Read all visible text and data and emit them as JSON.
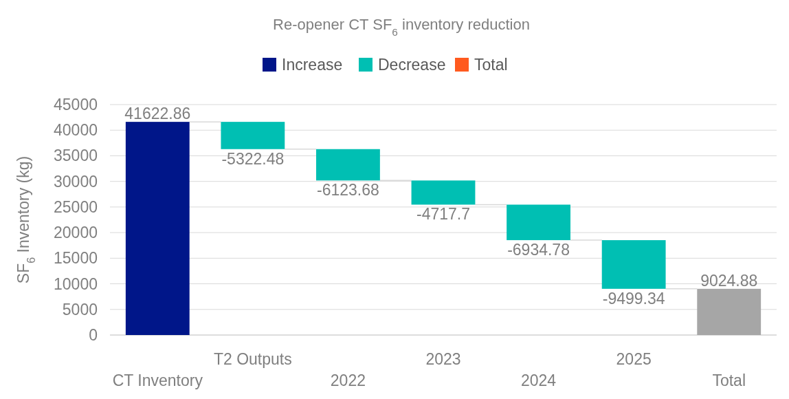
{
  "chart_data": {
    "type": "bar",
    "title": "Re-opener CT SF$_{6}$ inventory reduction",
    "ylabel": "SF$_{6}$ Inventory (kg)",
    "categories": [
      "CT Inventory",
      "T2 Outputs",
      "2022",
      "2023",
      "2024",
      "2025",
      "Total"
    ],
    "series": [
      {
        "name": "Increase",
        "color": "#001689",
        "values": [
          41622.86,
          null,
          null,
          null,
          null,
          null,
          null
        ]
      },
      {
        "name": "Decrease",
        "color": "#00bfb3",
        "base": [
          null,
          41622.86,
          36300.38,
          30176.7,
          25459,
          18524.22,
          null
        ],
        "values": [
          null,
          -5322.48,
          -6123.68,
          -4717.7,
          -6934.78,
          -9499.34,
          null
        ]
      },
      {
        "name": "Total",
        "color": "#ff5a1f",
        "values": [
          null,
          null,
          null,
          null,
          null,
          null,
          null
        ]
      },
      {
        "color": "#a6a6a6",
        "values": [
          null,
          null,
          null,
          null,
          null,
          null,
          9024.88
        ]
      }
    ],
    "ylim": [
      0,
      45000
    ],
    "yticks": [
      0,
      5000,
      10000,
      15000,
      20000,
      25000,
      30000,
      35000,
      40000,
      45000
    ],
    "grid": "y",
    "legend": "top",
    "data_labels": true
  }
}
